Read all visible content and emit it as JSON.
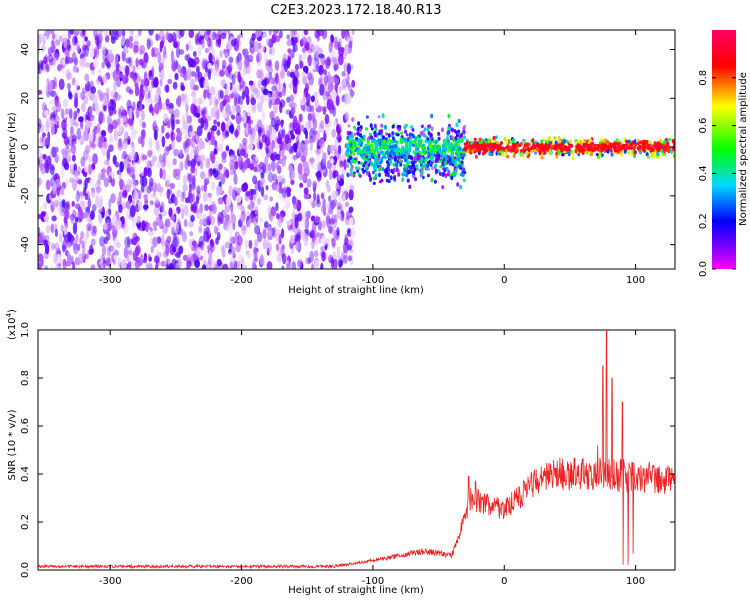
{
  "title": "C2E3.2023.172.18.40.R13",
  "chart_data": [
    {
      "type": "heatmap",
      "xlabel": "Height of straight line (km)",
      "ylabel": "Frequency (Hz)",
      "xlim": [
        -355,
        130
      ],
      "ylim": [
        -50,
        48
      ],
      "x_ticks": [
        -300,
        -200,
        -100,
        0,
        100
      ],
      "y_ticks": [
        -40,
        -20,
        0,
        20,
        40
      ],
      "colorbar": {
        "label": "Normalized spectral amplitude",
        "ticks": [
          0.0,
          0.2,
          0.4,
          0.6,
          0.8
        ],
        "range": [
          0,
          1
        ],
        "colors": [
          "#ffffff",
          "#8a00ff",
          "#0000ff",
          "#00e0ff",
          "#00ff00",
          "#ffff00",
          "#ff0000",
          "#ff0080"
        ]
      },
      "regions": [
        {
          "x": [
            -355,
            -115
          ],
          "freq": [
            -50,
            48
          ],
          "amplitude": [
            0.02,
            0.25
          ]
        },
        {
          "x": [
            -120,
            -30
          ],
          "freq": [
            -20,
            13
          ],
          "amplitude": [
            0.1,
            0.55
          ]
        },
        {
          "x": [
            -30,
            130
          ],
          "freq": [
            -5,
            5
          ],
          "amplitude": [
            0.3,
            0.95
          ]
        }
      ]
    },
    {
      "type": "line",
      "xlabel": "Height of straight line (km)",
      "ylabel": "SNR (10 * v/v)",
      "yscale_label": "(x10",
      "yscale_exp": "4",
      "yscale_close": ")",
      "xlim": [
        -355,
        130
      ],
      "ylim": [
        0,
        1.0
      ],
      "x_ticks": [
        -300,
        -200,
        -100,
        0,
        100
      ],
      "y_ticks": [
        "0.0",
        "0.2",
        "0.4",
        "0.6",
        "0.8",
        "1.0"
      ],
      "color": "#ee2222",
      "envelope": [
        {
          "x": -355,
          "y": 0.015
        },
        {
          "x": -130,
          "y": 0.015
        },
        {
          "x": -100,
          "y": 0.04
        },
        {
          "x": -60,
          "y": 0.08
        },
        {
          "x": -40,
          "y": 0.06
        },
        {
          "x": -25,
          "y": 0.3
        },
        {
          "x": 0,
          "y": 0.25
        },
        {
          "x": 20,
          "y": 0.35
        },
        {
          "x": 40,
          "y": 0.4
        },
        {
          "x": 70,
          "y": 0.4
        },
        {
          "x": 130,
          "y": 0.38
        }
      ],
      "spikes": [
        {
          "x": -27,
          "y": 0.39
        },
        {
          "x": -22,
          "y": 0.37
        },
        {
          "x": 75,
          "y": 0.85
        },
        {
          "x": 78,
          "y": 1.0
        },
        {
          "x": 82,
          "y": 0.8
        },
        {
          "x": 90,
          "y": 0.7
        },
        {
          "x": 98,
          "y": 0.45
        }
      ]
    }
  ]
}
